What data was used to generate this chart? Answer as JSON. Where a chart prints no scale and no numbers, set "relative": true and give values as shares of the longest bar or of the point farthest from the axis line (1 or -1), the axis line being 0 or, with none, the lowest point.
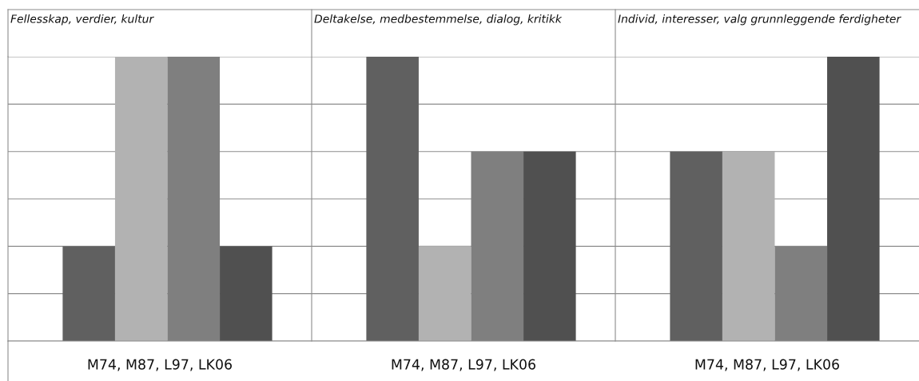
{
  "chart_data": {
    "type": "bar",
    "relative": true,
    "grid": true,
    "categories": [
      "M74, M87, L97, LK06",
      "M74, M87, L97, LK06",
      "M74, M87, L97, LK06"
    ],
    "annotations": [
      "Fellesskap, verdier, kultur",
      "Deltakelse, medbestemmelse, dialog, kritikk",
      "Individ, interesser, valg grunnleggende ferdigheter"
    ],
    "series": [
      {
        "color": "#606060",
        "values": [
          0.3333,
          1,
          0.6667
        ]
      },
      {
        "color": "#b2b2b2",
        "values": [
          1,
          0.3333,
          0.6667
        ]
      },
      {
        "color": "#7f7f7f",
        "values": [
          1,
          0.6667,
          0.3333
        ]
      },
      {
        "color": "#505050",
        "values": [
          0.3333,
          0.6667,
          1
        ]
      }
    ]
  }
}
